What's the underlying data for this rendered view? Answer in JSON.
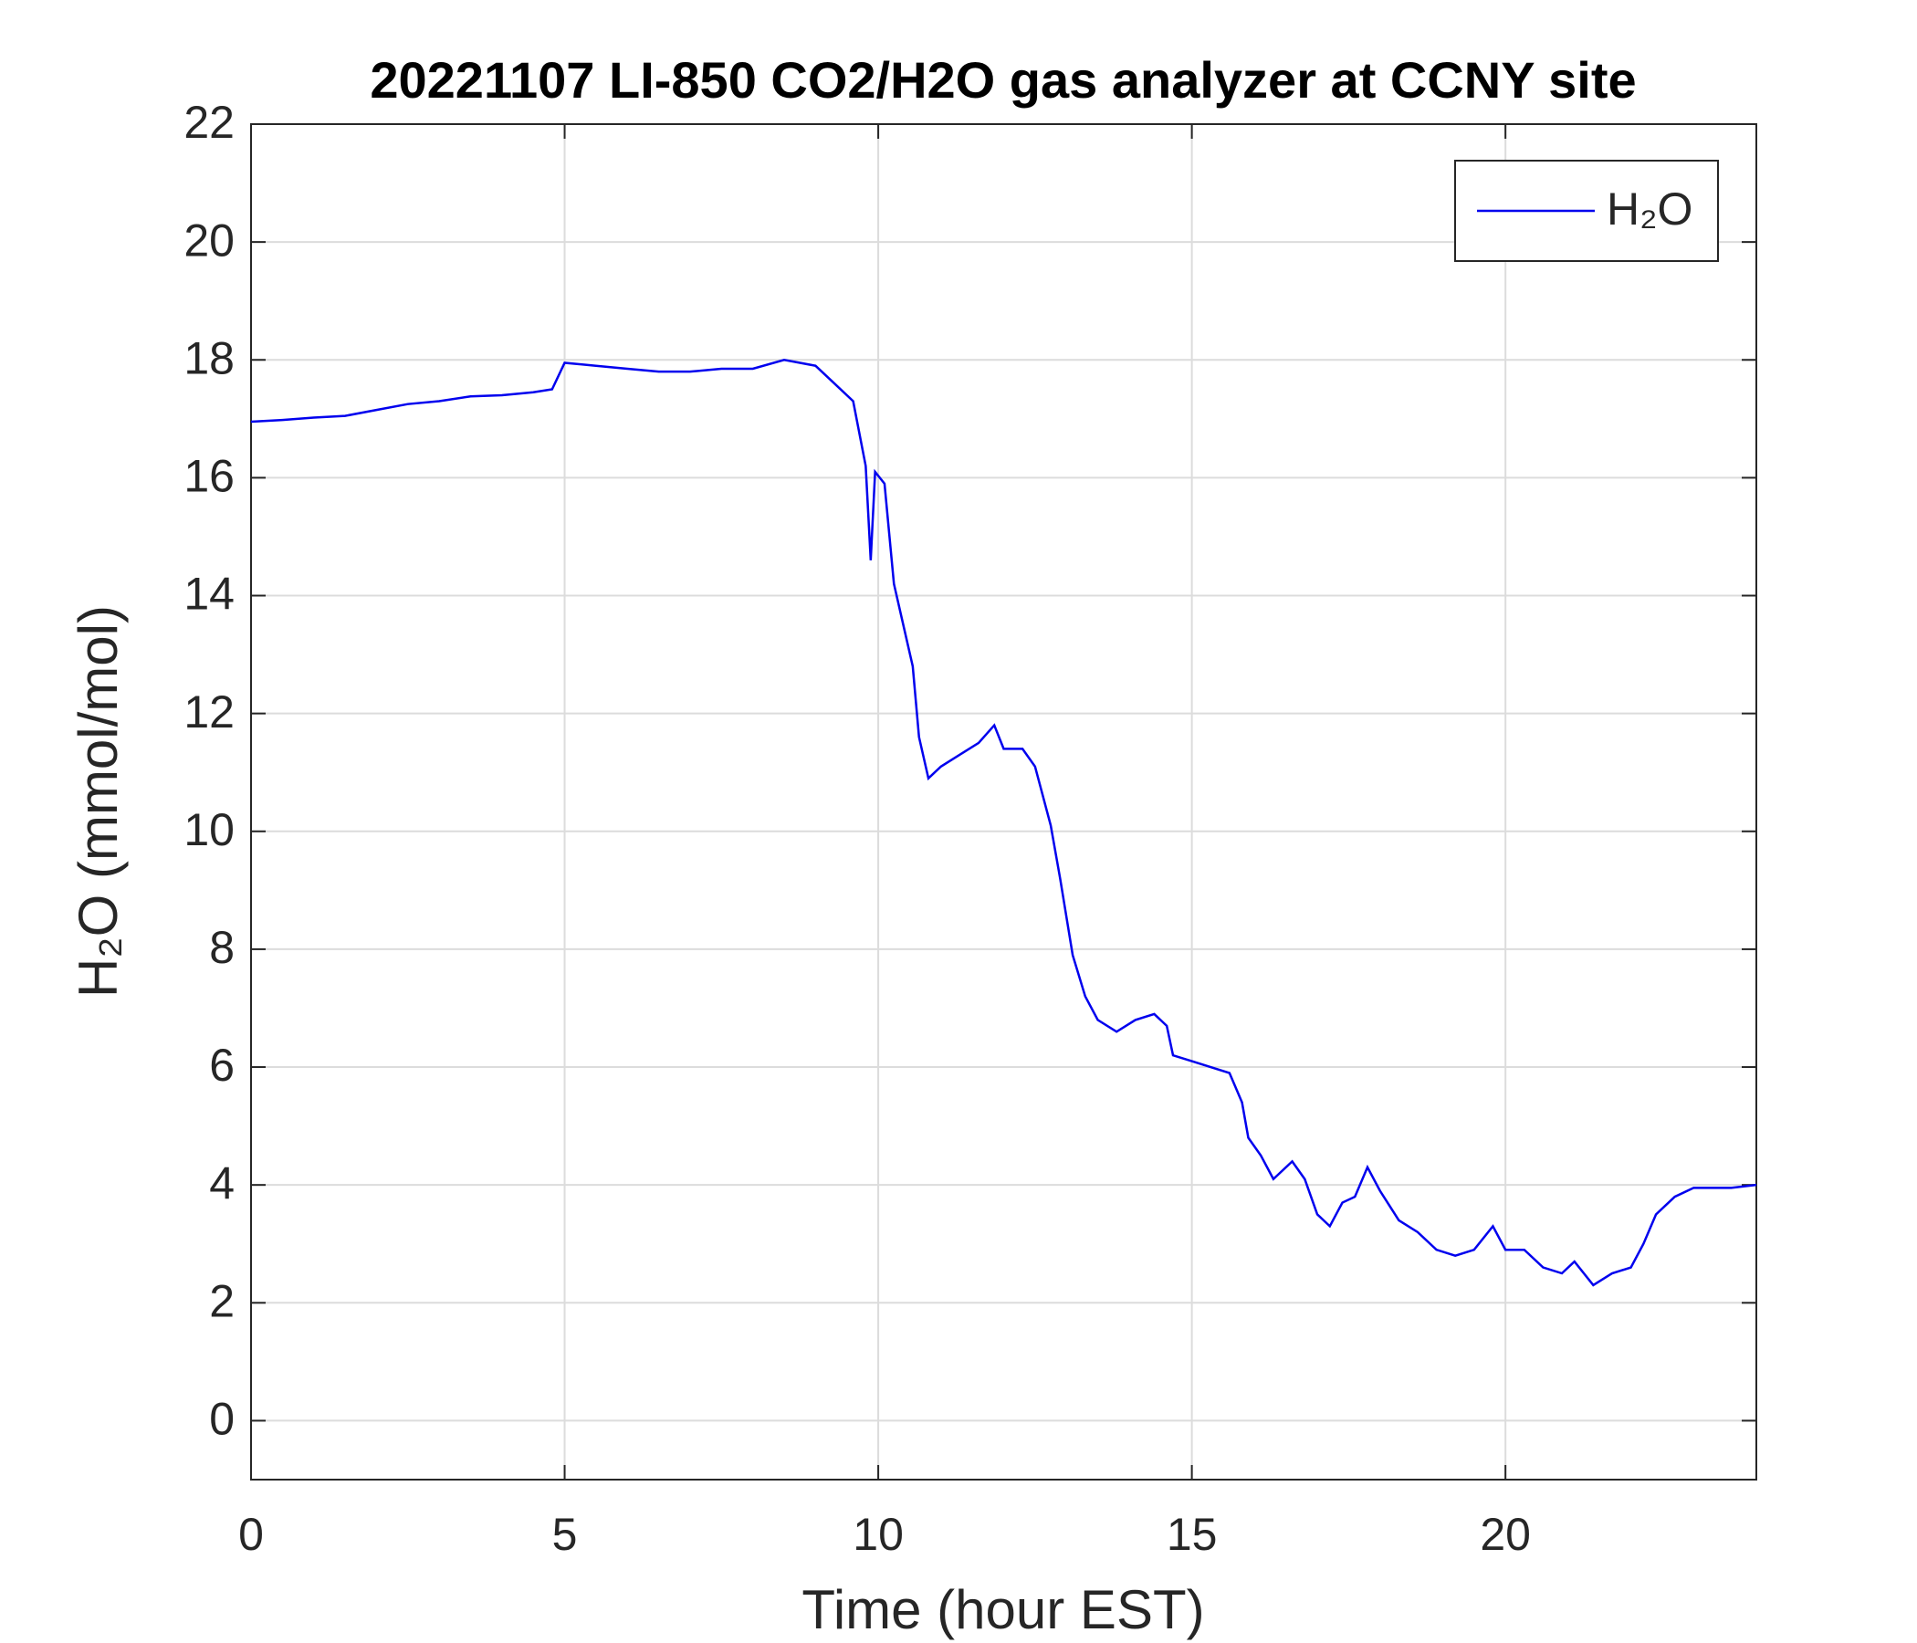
{
  "chart_data": {
    "type": "line",
    "title": "20221107 LI-850 CO2/H2O gas analyzer at CCNY site",
    "x_label": "Time (hour EST)",
    "y_label": "H₂O (mmol/mol)",
    "x": [
      0,
      0.5,
      1,
      1.5,
      2,
      2.5,
      3,
      3.5,
      4,
      4.5,
      4.8,
      5,
      5.5,
      6,
      6.5,
      7,
      7.5,
      8,
      8.5,
      9,
      9.3,
      9.6,
      9.8,
      9.88,
      9.95,
      10.1,
      10.25,
      10.4,
      10.55,
      10.65,
      10.8,
      11,
      11.3,
      11.6,
      11.85,
      12,
      12.3,
      12.5,
      12.6,
      12.75,
      12.9,
      13.1,
      13.3,
      13.5,
      13.8,
      14.1,
      14.4,
      14.6,
      14.7,
      15,
      15.3,
      15.6,
      15.8,
      15.9,
      16.1,
      16.3,
      16.6,
      16.8,
      17,
      17.2,
      17.4,
      17.6,
      17.8,
      18,
      18.3,
      18.6,
      18.9,
      19.2,
      19.5,
      19.8,
      20,
      20.3,
      20.6,
      20.9,
      21.1,
      21.4,
      21.7,
      22,
      22.2,
      22.4,
      22.7,
      23,
      23.3,
      23.6,
      24
    ],
    "series": [
      {
        "name": "H₂O",
        "color": "#0000ee",
        "values": [
          16.95,
          16.98,
          17.02,
          17.05,
          17.15,
          17.25,
          17.3,
          17.38,
          17.4,
          17.45,
          17.5,
          17.95,
          17.9,
          17.85,
          17.8,
          17.8,
          17.85,
          17.85,
          18.0,
          17.9,
          17.6,
          17.3,
          16.2,
          14.6,
          16.1,
          15.9,
          14.2,
          13.5,
          12.8,
          11.6,
          10.9,
          11.1,
          11.3,
          11.5,
          11.8,
          11.4,
          11.4,
          11.1,
          10.7,
          10.1,
          9.2,
          7.9,
          7.2,
          6.8,
          6.6,
          6.8,
          6.9,
          6.7,
          6.2,
          6.1,
          6.0,
          5.9,
          5.4,
          4.8,
          4.5,
          4.1,
          4.4,
          4.1,
          3.5,
          3.3,
          3.7,
          3.8,
          4.3,
          3.9,
          3.4,
          3.2,
          2.9,
          2.8,
          2.9,
          3.3,
          2.9,
          2.9,
          2.6,
          2.5,
          2.7,
          2.3,
          2.5,
          2.6,
          3.0,
          3.5,
          3.8,
          3.95,
          3.95,
          3.95,
          4.0
        ]
      }
    ],
    "xlim": [
      0,
      24
    ],
    "xticks": [
      0,
      5,
      10,
      15,
      20
    ],
    "ylim": [
      -1,
      22
    ],
    "yticks": [
      0,
      2,
      4,
      6,
      8,
      10,
      12,
      14,
      16,
      18,
      20,
      22
    ],
    "grid": true,
    "legend": "upper right"
  }
}
